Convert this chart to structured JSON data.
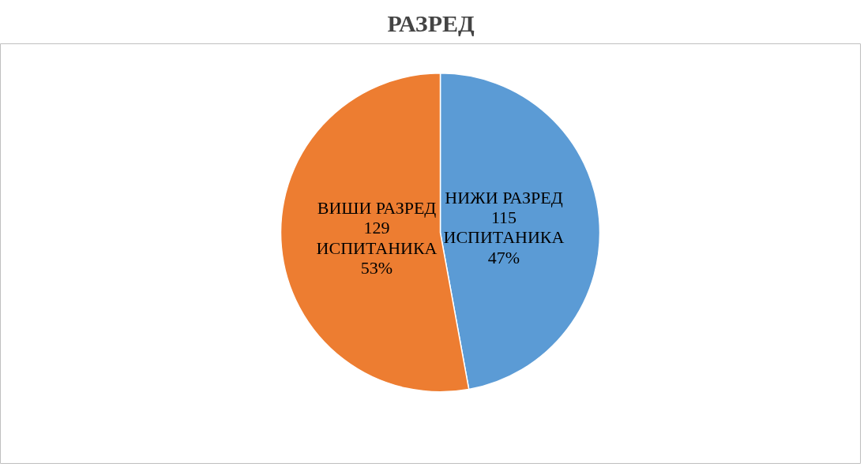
{
  "chart_data": {
    "type": "pie",
    "title": "РАЗРЕД",
    "categories": [
      "НИЖИ РАЗРЕД",
      "ВИШИ РАЗРЕД"
    ],
    "values": [
      115,
      129
    ],
    "colors": [
      "#5b9bd5",
      "#ed7d31"
    ],
    "value_labels": [
      "115\nИСПИТАНИКА\n47%",
      "129\nИСПИТАНИКА\n53%"
    ],
    "legend": false
  }
}
